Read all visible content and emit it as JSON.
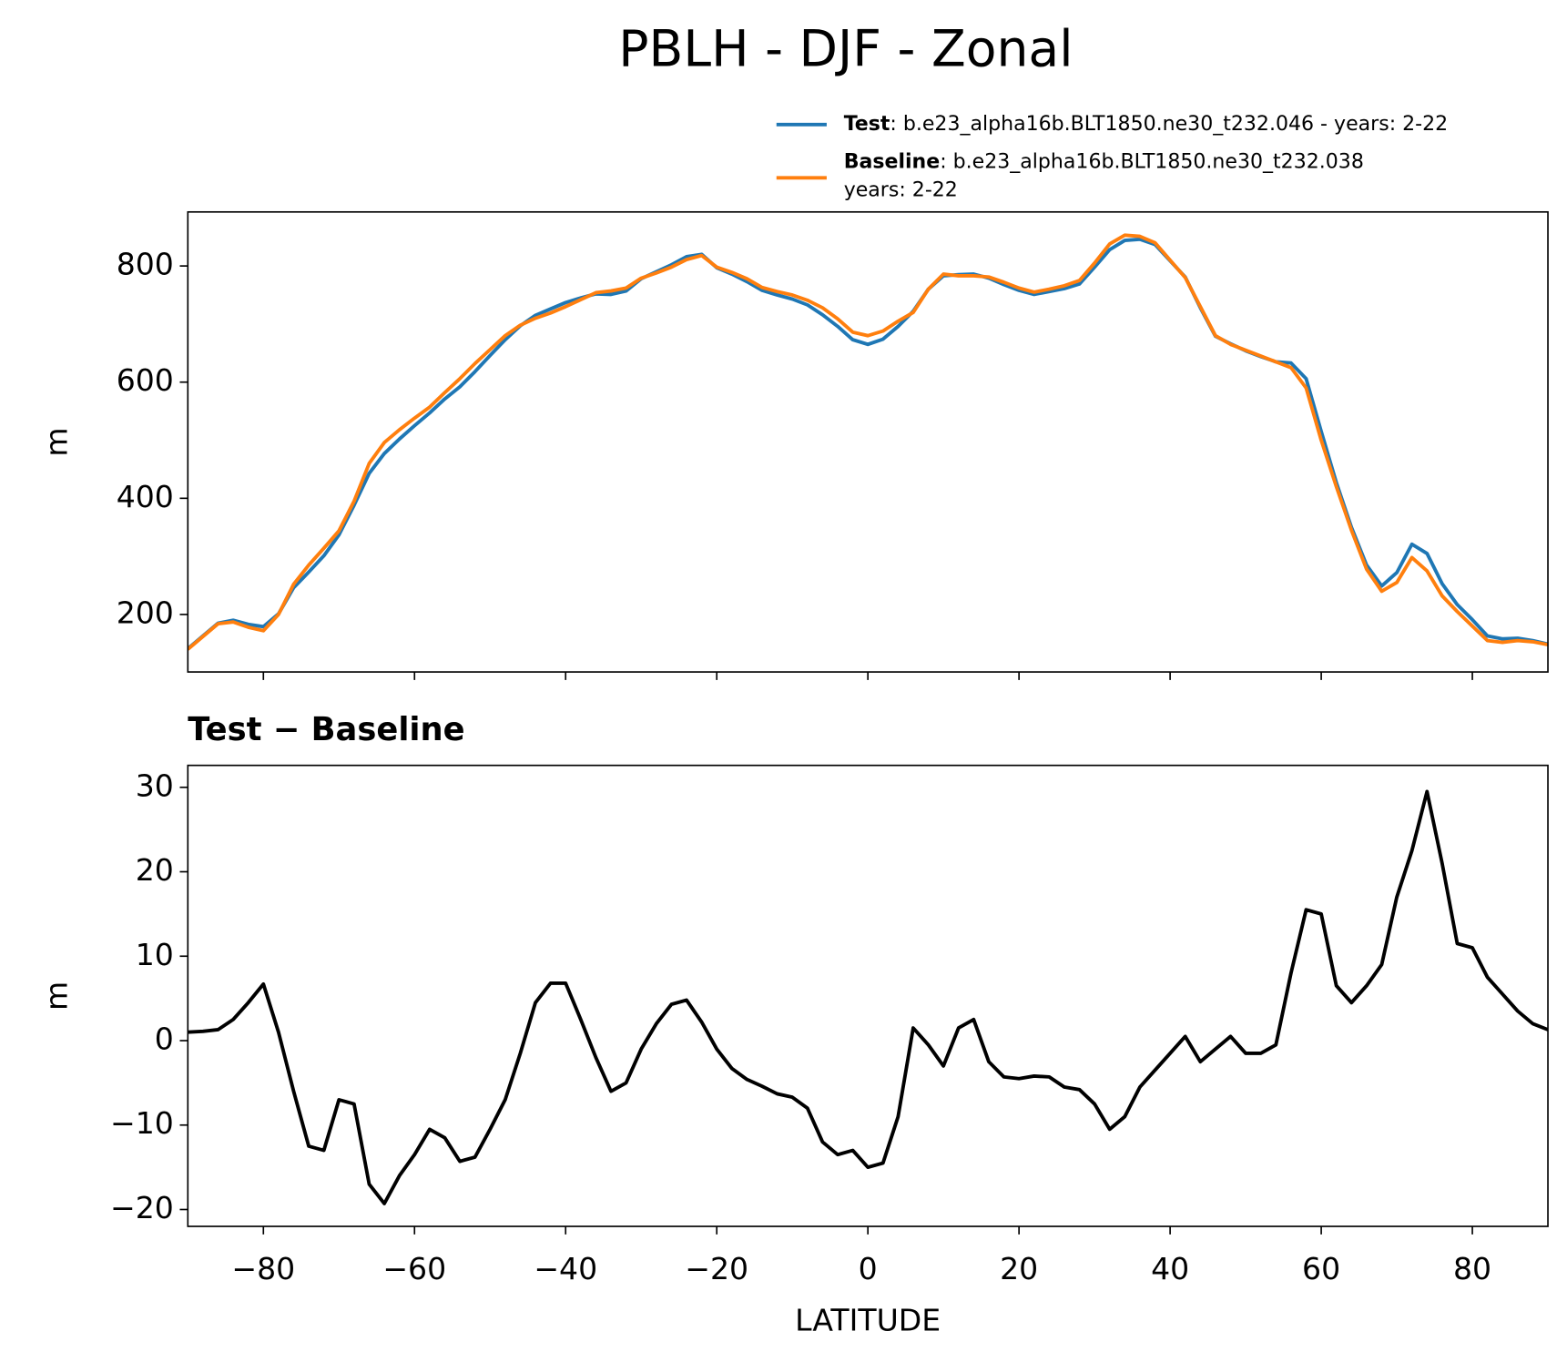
{
  "title": "PBLH - DJF - Zonal",
  "chart_data": [
    {
      "type": "line",
      "ylabel": "m",
      "x": [
        -90,
        -88,
        -86,
        -84,
        -82,
        -80,
        -78,
        -76,
        -74,
        -72,
        -70,
        -68,
        -66,
        -64,
        -62,
        -60,
        -58,
        -56,
        -54,
        -52,
        -50,
        -48,
        -46,
        -44,
        -42,
        -40,
        -38,
        -36,
        -34,
        -32,
        -30,
        -28,
        -26,
        -24,
        -22,
        -20,
        -18,
        -16,
        -14,
        -12,
        -10,
        -8,
        -6,
        -4,
        -2,
        0,
        2,
        4,
        6,
        8,
        10,
        12,
        14,
        16,
        18,
        20,
        22,
        24,
        26,
        28,
        30,
        32,
        34,
        36,
        38,
        40,
        42,
        44,
        46,
        48,
        50,
        52,
        54,
        56,
        58,
        60,
        62,
        64,
        66,
        68,
        70,
        72,
        74,
        76,
        78,
        80,
        82,
        84,
        86,
        88,
        90
      ],
      "series": [
        {
          "name": "Test",
          "label_lines": [
            ": b.e23_alpha16b.BLT1850.ne30_t232.046 - years: 2-22"
          ],
          "color": "#1f77b4",
          "values": [
            141,
            163,
            185,
            190,
            183,
            179,
            201,
            246,
            273,
            301,
            337,
            388,
            443,
            477,
            502,
            525,
            547,
            571,
            592,
            618,
            646,
            673,
            697,
            715,
            726,
            737,
            745,
            752,
            751,
            757,
            778,
            790,
            802,
            816,
            820,
            797,
            786,
            773,
            758,
            750,
            743,
            733,
            716,
            696,
            673,
            665,
            674,
            696,
            722,
            760,
            783,
            785,
            786,
            779,
            768,
            758,
            751,
            756,
            761,
            769,
            798,
            828,
            844,
            846,
            837,
            809,
            781,
            728,
            679,
            666,
            654,
            644,
            635,
            633,
            606,
            515,
            427,
            350,
            285,
            249,
            272,
            321,
            305,
            253,
            217,
            191,
            163,
            158,
            159,
            155,
            149
          ]
        },
        {
          "name": "Baseline",
          "label_lines": [
            ": b.e23_alpha16b.BLT1850.ne30_t232.038",
            "years: 2-22"
          ],
          "color": "#ff7f0e",
          "values": [
            140,
            162,
            184,
            187,
            178,
            172,
            200,
            252,
            285,
            314,
            344,
            395,
            460,
            496,
            518,
            538,
            557,
            582,
            606,
            632,
            656,
            680,
            698,
            710,
            719,
            730,
            742,
            754,
            757,
            762,
            779,
            788,
            798,
            811,
            818,
            798,
            789,
            778,
            763,
            756,
            750,
            741,
            728,
            709,
            686,
            680,
            688,
            705,
            720,
            760,
            786,
            783,
            783,
            781,
            772,
            762,
            755,
            760,
            766,
            775,
            805,
            838,
            853,
            851,
            840,
            810,
            780,
            730,
            680,
            665,
            655,
            645,
            635,
            625,
            590,
            500,
            420,
            345,
            278,
            240,
            255,
            298,
            275,
            232,
            205,
            180,
            155,
            152,
            155,
            153,
            148
          ]
        }
      ],
      "xlim": [
        -90,
        90
      ],
      "xticks": [
        -80,
        -60,
        -40,
        -20,
        0,
        20,
        40,
        60,
        80
      ],
      "ylim": [
        101,
        893
      ],
      "yticks": [
        200,
        400,
        600,
        800
      ]
    },
    {
      "type": "line",
      "title": "Test − Baseline",
      "xlabel": "LATITUDE",
      "ylabel": "m",
      "x": [
        -90,
        -88,
        -86,
        -84,
        -82,
        -80,
        -78,
        -76,
        -74,
        -72,
        -70,
        -68,
        -66,
        -64,
        -62,
        -60,
        -58,
        -56,
        -54,
        -52,
        -50,
        -48,
        -46,
        -44,
        -42,
        -40,
        -38,
        -36,
        -34,
        -32,
        -30,
        -28,
        -26,
        -24,
        -22,
        -20,
        -18,
        -16,
        -14,
        -12,
        -10,
        -8,
        -6,
        -4,
        -2,
        0,
        2,
        4,
        6,
        8,
        10,
        12,
        14,
        16,
        18,
        20,
        22,
        24,
        26,
        28,
        30,
        32,
        34,
        36,
        38,
        40,
        42,
        44,
        46,
        48,
        50,
        52,
        54,
        56,
        58,
        60,
        62,
        64,
        66,
        68,
        70,
        72,
        74,
        76,
        78,
        80,
        82,
        84,
        86,
        88,
        90
      ],
      "series": [
        {
          "color": "#000000",
          "values": [
            1,
            1.1,
            1.3,
            2.5,
            4.5,
            6.7,
            1,
            -6,
            -12.5,
            -13,
            -7,
            -7.5,
            -17,
            -19.3,
            -16,
            -13.5,
            -10.5,
            -11.5,
            -14.3,
            -13.8,
            -10.5,
            -7,
            -1.5,
            4.5,
            6.8,
            6.8,
            2.5,
            -2,
            -6,
            -5,
            -1,
            2,
            4.3,
            4.8,
            2.2,
            -1,
            -3.3,
            -4.6,
            -5.4,
            -6.3,
            -6.7,
            -8,
            -12,
            -13.5,
            -13,
            -15,
            -14.5,
            -9,
            1.5,
            -0.5,
            -3,
            1.5,
            2.5,
            -2.5,
            -4.3,
            -4.5,
            -4.2,
            -4.3,
            -5.5,
            -5.8,
            -7.5,
            -10.5,
            -9,
            -5.5,
            -3.5,
            -1.5,
            0.5,
            -2.5,
            -1,
            0.5,
            -1.5,
            -1.5,
            -0.5,
            8,
            15.5,
            15,
            6.5,
            4.5,
            6.5,
            9,
            17,
            22.5,
            29.5,
            21,
            11.5,
            11,
            7.5,
            5.5,
            3.5,
            2,
            1.3
          ]
        }
      ],
      "xlim": [
        -90,
        90
      ],
      "xticks": [
        {
          "value": -80,
          "label": "−80"
        },
        {
          "value": -60,
          "label": "−60"
        },
        {
          "value": -40,
          "label": "−40"
        },
        {
          "value": -20,
          "label": "−20"
        },
        0,
        20,
        40,
        60,
        80
      ],
      "ylim": [
        -22,
        32.6
      ],
      "yticks": [
        {
          "value": -20,
          "label": "−20"
        },
        {
          "value": -10,
          "label": "−10"
        },
        0,
        10,
        20,
        30
      ]
    }
  ]
}
